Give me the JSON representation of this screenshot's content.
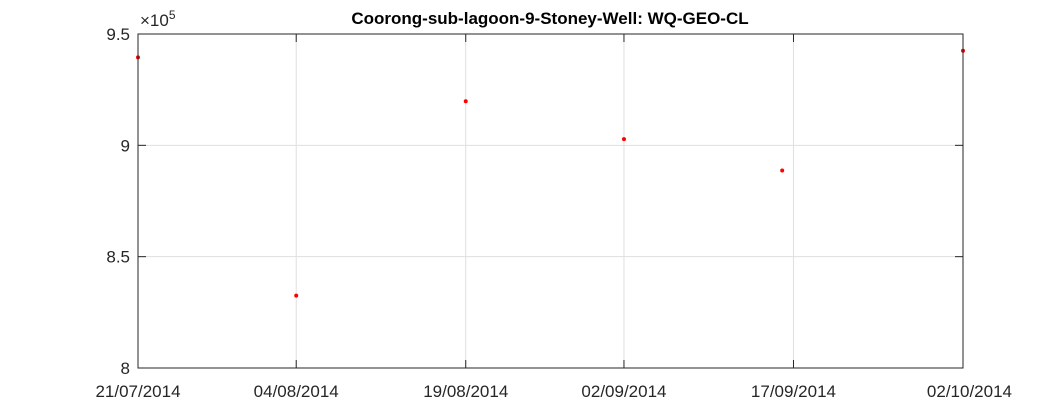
{
  "chart_data": {
    "type": "scatter",
    "title": "Coorong-sub-lagoon-9-Stoney-Well: WQ-GEO-CL",
    "xlabel": "",
    "ylabel": "",
    "x_is_date": true,
    "xlim": [
      "2014-07-21",
      "2014-10-02"
    ],
    "ylim": [
      800000,
      950000
    ],
    "y_exponent_label": "×10",
    "y_exponent_power": "5",
    "x_ticks": [
      "2014-07-21",
      "2014-08-04",
      "2014-08-19",
      "2014-09-02",
      "2014-09-17",
      "2014-10-02"
    ],
    "x_tick_labels": [
      "21/07/2014",
      "04/08/2014",
      "19/08/2014",
      "02/09/2014",
      "17/09/2014",
      "02/10/2014"
    ],
    "y_ticks": [
      800000,
      850000,
      900000,
      950000
    ],
    "y_tick_labels": [
      "8",
      "8.5",
      "9",
      "9.5"
    ],
    "grid": true,
    "series": [
      {
        "color": "#ff0000",
        "points": [
          {
            "x": "2014-07-21",
            "y": 939500
          },
          {
            "x": "2014-08-04",
            "y": 832500
          },
          {
            "x": "2014-08-19",
            "y": 919800
          },
          {
            "x": "2014-09-02",
            "y": 902800
          },
          {
            "x": "2014-09-16",
            "y": 888700
          },
          {
            "x": "2014-10-02",
            "y": 942500
          }
        ]
      }
    ]
  }
}
